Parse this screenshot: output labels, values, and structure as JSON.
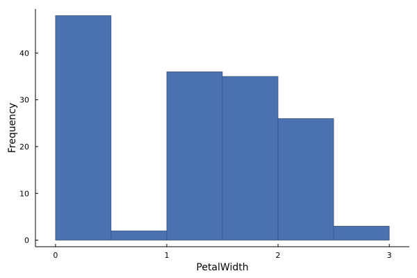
{
  "chart_data": {
    "type": "bar",
    "title": "",
    "xlabel": "PetalWidth",
    "ylabel": "Frequency",
    "bin_edges": [
      0,
      0.5,
      1,
      1.5,
      2,
      2.5,
      3
    ],
    "values": [
      48,
      2,
      36,
      35,
      26,
      3
    ],
    "xlim": [
      -0.18,
      3.18
    ],
    "ylim": [
      -1.4,
      49.4
    ],
    "x_ticks": [
      0,
      1,
      2,
      3
    ],
    "x_tick_labels": [
      "0",
      "1",
      "2",
      "3"
    ],
    "y_ticks": [
      0,
      10,
      20,
      30,
      40
    ],
    "y_tick_labels": [
      "0",
      "10",
      "20",
      "30",
      "40"
    ],
    "grid": false,
    "legend": "none",
    "bar_color": "#4a72b0"
  }
}
